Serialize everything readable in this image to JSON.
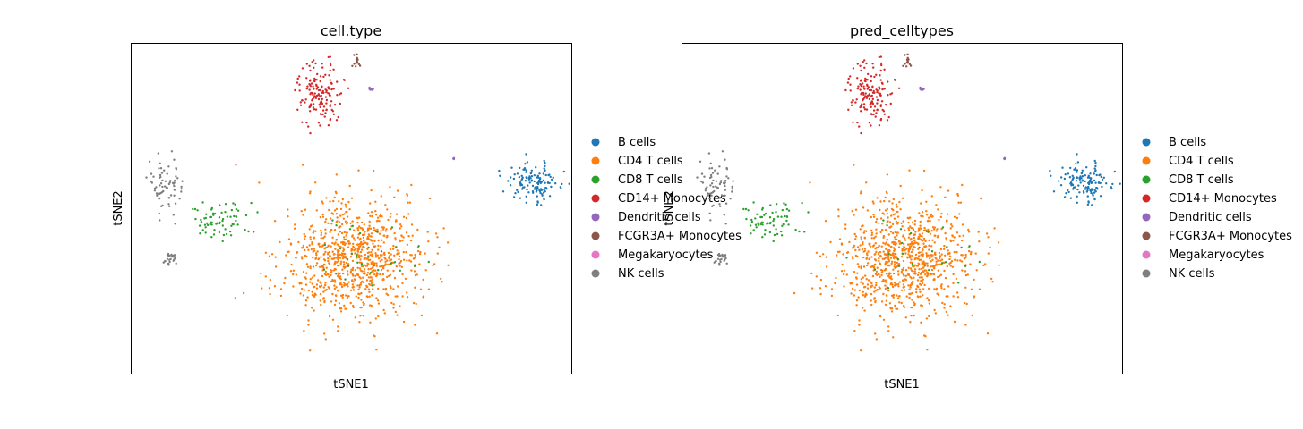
{
  "chart_data": [
    {
      "type": "scatter",
      "title": "cell.type",
      "xlabel": "tSNE1",
      "ylabel": "tSNE2",
      "xlim": [
        -40,
        40
      ],
      "ylim": [
        -30,
        30
      ],
      "grid": false,
      "legend_position": "right",
      "series": [
        {
          "name": "B cells",
          "color": "#1f77b4",
          "clusters": [
            {
              "center": [
                33,
                5
              ],
              "spread": [
                4.5,
                3
              ],
              "n": 130
            }
          ]
        },
        {
          "name": "CD4 T cells",
          "color": "#ff7f0e",
          "clusters": [
            {
              "center": [
                0,
                -9
              ],
              "spread": [
                11,
                9.5
              ],
              "n": 900
            }
          ]
        },
        {
          "name": "CD8 T cells",
          "color": "#2ca02c",
          "clusters": [
            {
              "center": [
                -24,
                -2
              ],
              "spread": [
                5,
                3
              ],
              "n": 75
            },
            {
              "center": [
                2,
                -9
              ],
              "spread": [
                9,
                7
              ],
              "n": 35
            }
          ]
        },
        {
          "name": "CD14+ Monocytes",
          "color": "#d62728",
          "clusters": [
            {
              "center": [
                -6,
                21
              ],
              "spread": [
                4,
                5
              ],
              "n": 150
            }
          ]
        },
        {
          "name": "Dendritic cells",
          "color": "#9467bd",
          "clusters": [
            {
              "center": [
                3.5,
                21.8
              ],
              "spread": [
                0.4,
                0.15
              ],
              "n": 8
            },
            {
              "center": [
                18.5,
                9.2
              ],
              "spread": [
                0.2,
                0.15
              ],
              "n": 3
            }
          ]
        },
        {
          "name": "FCGR3A+ Monocytes",
          "color": "#8c564b",
          "clusters": [
            {
              "center": [
                0.8,
                27
              ],
              "spread": [
                1,
                1.2
              ],
              "n": 15
            }
          ]
        },
        {
          "name": "Megakaryocytes",
          "color": "#e377c2",
          "clusters": [
            {
              "center": [
                -21,
                8
              ],
              "spread": [
                0.1,
                0.1
              ],
              "n": 1
            },
            {
              "center": [
                -21,
                -16
              ],
              "spread": [
                0.1,
                0.1
              ],
              "n": 1
            }
          ]
        },
        {
          "name": "NK cells",
          "color": "#7f7f7f",
          "clusters": [
            {
              "center": [
                -34,
                4
              ],
              "spread": [
                3,
                4.5
              ],
              "n": 70
            },
            {
              "center": [
                -33,
                -9
              ],
              "spread": [
                1.2,
                1
              ],
              "n": 25
            }
          ]
        }
      ]
    },
    {
      "type": "scatter",
      "title": "pred_celltypes",
      "xlabel": "tSNE1",
      "ylabel": "tSNE2",
      "xlim": [
        -40,
        40
      ],
      "ylim": [
        -30,
        30
      ],
      "grid": false,
      "legend_position": "right",
      "series": [
        {
          "name": "B cells",
          "color": "#1f77b4",
          "clusters": [
            {
              "center": [
                33,
                5
              ],
              "spread": [
                4.5,
                3
              ],
              "n": 130
            }
          ]
        },
        {
          "name": "CD4 T cells",
          "color": "#ff7f0e",
          "clusters": [
            {
              "center": [
                0,
                -9
              ],
              "spread": [
                11,
                9.5
              ],
              "n": 920
            }
          ]
        },
        {
          "name": "CD8 T cells",
          "color": "#2ca02c",
          "clusters": [
            {
              "center": [
                -24,
                -2
              ],
              "spread": [
                5,
                3
              ],
              "n": 70
            },
            {
              "center": [
                2,
                -9
              ],
              "spread": [
                9,
                7
              ],
              "n": 30
            }
          ]
        },
        {
          "name": "CD14+ Monocytes",
          "color": "#d62728",
          "clusters": [
            {
              "center": [
                -6,
                21
              ],
              "spread": [
                4,
                5
              ],
              "n": 150
            }
          ]
        },
        {
          "name": "Dendritic cells",
          "color": "#9467bd",
          "clusters": [
            {
              "center": [
                3.5,
                21.8
              ],
              "spread": [
                0.4,
                0.15
              ],
              "n": 8
            },
            {
              "center": [
                18.5,
                9.2
              ],
              "spread": [
                0.2,
                0.15
              ],
              "n": 3
            }
          ]
        },
        {
          "name": "FCGR3A+ Monocytes",
          "color": "#8c564b",
          "clusters": [
            {
              "center": [
                0.8,
                27
              ],
              "spread": [
                1,
                1.2
              ],
              "n": 15
            }
          ]
        },
        {
          "name": "Megakaryocytes",
          "color": "#e377c2",
          "clusters": []
        },
        {
          "name": "NK cells",
          "color": "#7f7f7f",
          "clusters": [
            {
              "center": [
                -34,
                4
              ],
              "spread": [
                3,
                4.5
              ],
              "n": 70
            },
            {
              "center": [
                -33,
                -9
              ],
              "spread": [
                1.2,
                1
              ],
              "n": 25
            }
          ]
        }
      ]
    }
  ]
}
